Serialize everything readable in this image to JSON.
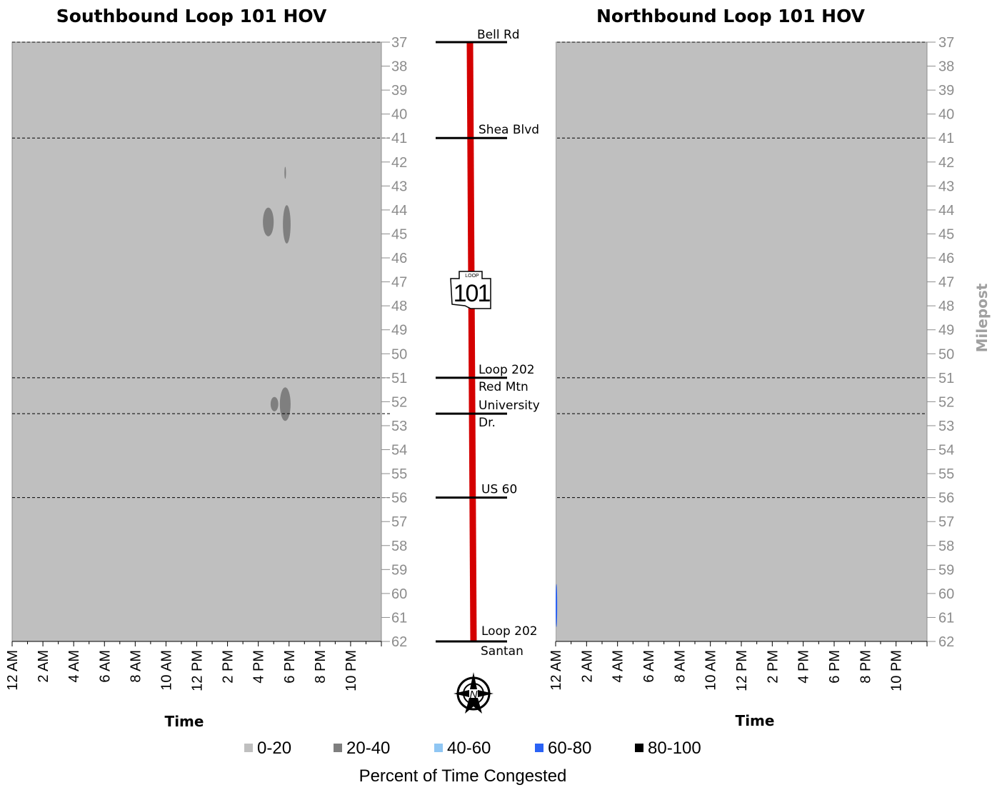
{
  "titles": {
    "left": "Southbound Loop 101 HOV",
    "right": "Northbound Loop 101 HOV"
  },
  "x_axis_title": "Time",
  "y_axis_title": "Milepost",
  "shield": {
    "top": "LOOP",
    "number": "101"
  },
  "legend": {
    "title": "Percent of Time Congested",
    "items": [
      {
        "label": "0-20",
        "color": "#bfbfbf"
      },
      {
        "label": "20-40",
        "color": "#7f7f7f"
      },
      {
        "label": "40-60",
        "color": "#8fc6f3"
      },
      {
        "label": "60-80",
        "color": "#2a62f5"
      },
      {
        "label": "80-100",
        "color": "#000000"
      }
    ]
  },
  "interchanges": [
    {
      "milepost": 37,
      "labels": [
        "Bell Rd"
      ]
    },
    {
      "milepost": 41,
      "labels": [
        "Shea Blvd"
      ]
    },
    {
      "milepost": 51,
      "labels": [
        "Loop 202",
        "Red Mtn"
      ]
    },
    {
      "milepost": 52.5,
      "labels": [
        "University",
        "Dr."
      ]
    },
    {
      "milepost": 56,
      "labels": [
        "US 60"
      ]
    },
    {
      "milepost": 62,
      "labels": [
        "Loop 202",
        "Santan"
      ]
    }
  ],
  "chart_data": [
    {
      "type": "heatmap",
      "title": "Southbound Loop 101 HOV",
      "xlabel": "Time",
      "ylabel": "",
      "x_ticks": [
        "12 AM",
        "2 AM",
        "4 AM",
        "6 AM",
        "8 AM",
        "10 AM",
        "12 PM",
        "2 PM",
        "4 PM",
        "6 PM",
        "8 PM",
        "10 PM"
      ],
      "y_ticks": [
        37,
        38,
        39,
        40,
        41,
        42,
        43,
        44,
        45,
        46,
        47,
        48,
        49,
        50,
        51,
        52,
        53,
        54,
        55,
        56,
        57,
        58,
        59,
        60,
        61,
        62
      ],
      "xlim_hours": [
        0,
        24
      ],
      "ylim_milepost": [
        37,
        62
      ],
      "background_bin": "0-20",
      "hotspots": [
        {
          "bin": "20-40",
          "time_start_hr": 17.7,
          "time_end_hr": 17.8,
          "milepost_start": 42.2,
          "milepost_end": 42.7
        },
        {
          "bin": "20-40",
          "time_start_hr": 16.3,
          "time_end_hr": 17.0,
          "milepost_start": 43.9,
          "milepost_end": 45.1
        },
        {
          "bin": "20-40",
          "time_start_hr": 17.6,
          "time_end_hr": 18.1,
          "milepost_start": 43.8,
          "milepost_end": 45.4
        },
        {
          "bin": "20-40",
          "time_start_hr": 16.8,
          "time_end_hr": 17.3,
          "milepost_start": 51.8,
          "milepost_end": 52.4
        },
        {
          "bin": "20-40",
          "time_start_hr": 17.4,
          "time_end_hr": 18.1,
          "milepost_start": 51.4,
          "milepost_end": 52.8
        }
      ]
    },
    {
      "type": "heatmap",
      "title": "Northbound Loop 101 HOV",
      "xlabel": "Time",
      "ylabel": "Milepost",
      "x_ticks": [
        "12 AM",
        "2 AM",
        "4 AM",
        "6 AM",
        "8 AM",
        "10 AM",
        "12 PM",
        "2 PM",
        "4 PM",
        "6 PM",
        "8 PM",
        "10 PM"
      ],
      "y_ticks": [
        37,
        38,
        39,
        40,
        41,
        42,
        43,
        44,
        45,
        46,
        47,
        48,
        49,
        50,
        51,
        52,
        53,
        54,
        55,
        56,
        57,
        58,
        59,
        60,
        61,
        62
      ],
      "xlim_hours": [
        0,
        24
      ],
      "ylim_milepost": [
        37,
        62
      ],
      "background_bin": "0-20",
      "hotspots": [
        {
          "bin": "60-80",
          "time_start_hr": 0.0,
          "time_end_hr": 0.1,
          "milepost_start": 59.6,
          "milepost_end": 61.4
        }
      ]
    }
  ]
}
